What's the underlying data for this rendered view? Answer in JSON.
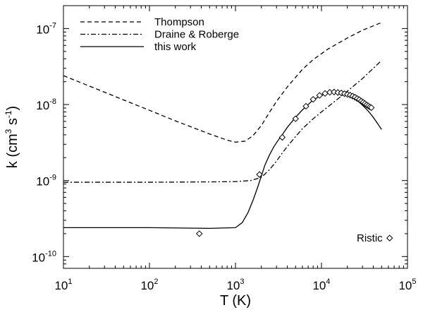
{
  "chart_data": {
    "type": "line",
    "x_scale": "log",
    "y_scale": "log",
    "xlim": [
      10,
      100000
    ],
    "ylim": [
      7e-11,
      2e-07
    ],
    "xlabel": "T (K)",
    "ylabel": {
      "base": "k (cm",
      "sup1": "3",
      "mid": " s",
      "sup2": "-1",
      "end": ")"
    },
    "x_ticks": [
      {
        "value": 10,
        "base": "10",
        "exp": "1"
      },
      {
        "value": 100,
        "base": "10",
        "exp": "2"
      },
      {
        "value": 1000,
        "base": "10",
        "exp": "3"
      },
      {
        "value": 10000,
        "base": "10",
        "exp": "4"
      },
      {
        "value": 100000,
        "base": "10",
        "exp": "5"
      }
    ],
    "y_ticks": [
      {
        "value": 1e-10,
        "base": "10",
        "exp": "-10"
      },
      {
        "value": 1e-09,
        "base": "10",
        "exp": "-9"
      },
      {
        "value": 1e-08,
        "base": "10",
        "exp": "-8"
      },
      {
        "value": 1e-07,
        "base": "10",
        "exp": "-7"
      }
    ],
    "series": [
      {
        "name": "Thompson",
        "style": "dashed",
        "x": [
          10,
          20,
          50,
          100,
          200,
          500,
          800,
          1000,
          1300,
          1600,
          2000,
          2500,
          3000,
          4000,
          6000,
          8000,
          12000,
          20000,
          30000,
          50000
        ],
        "y": [
          2.4e-08,
          1.75e-08,
          1.15e-08,
          8.4e-09,
          6.1e-09,
          4.1e-09,
          3.4e-09,
          3.2e-09,
          3.3e-09,
          3.9e-09,
          5.3e-09,
          8e-09,
          1.1e-08,
          1.7e-08,
          2.9e-08,
          3.9e-08,
          5.4e-08,
          7.5e-08,
          9.5e-08,
          1.2e-07
        ]
      },
      {
        "name": "Draine & Roberge",
        "style": "dashdot",
        "x": [
          10,
          100,
          500,
          1000,
          1500,
          2000,
          2500,
          3000,
          3500,
          4000,
          5000,
          6000,
          8000,
          10000,
          15000,
          20000,
          30000,
          50000
        ],
        "y": [
          9.5e-10,
          9.5e-10,
          9.6e-10,
          9.7e-10,
          1e-09,
          1.1e-09,
          1.4e-09,
          1.8e-09,
          2.3e-09,
          2.8e-09,
          3.8e-09,
          4.8e-09,
          6.5e-09,
          8e-09,
          1.15e-08,
          1.5e-08,
          2.2e-08,
          3.8e-08
        ]
      },
      {
        "name": "this work",
        "style": "solid",
        "x": [
          10,
          100,
          500,
          1000,
          1200,
          1400,
          1600,
          1800,
          2000,
          2200,
          2500,
          2800,
          3200,
          3600,
          4000,
          5000,
          6000,
          7000,
          8000,
          10000,
          12000,
          14000,
          16000,
          20000,
          25000,
          30000,
          35000,
          40000,
          45000,
          50000
        ],
        "y": [
          2.4e-10,
          2.4e-10,
          2.35e-10,
          2.4e-10,
          2.8e-10,
          3.8e-10,
          5.5e-10,
          8e-10,
          1.15e-09,
          1.6e-09,
          2.2e-09,
          2.8e-09,
          3.5e-09,
          4.2e-09,
          5e-09,
          6.8e-09,
          8.5e-09,
          1e-08,
          1.15e-08,
          1.33e-08,
          1.42e-08,
          1.45e-08,
          1.43e-08,
          1.33e-08,
          1.18e-08,
          9.8e-09,
          8.2e-09,
          6.8e-09,
          5.6e-09,
          4.7e-09
        ]
      },
      {
        "name": "Ristic",
        "style": "markers",
        "x": [
          380,
          1900,
          3500,
          5000,
          6600,
          8000,
          9500,
          11000,
          12500,
          14000,
          15500,
          17000,
          18500,
          20000,
          21500,
          23000,
          24500,
          26000,
          27500,
          29000,
          30500,
          32000,
          33500,
          35000,
          36500,
          38000
        ],
        "y": [
          2e-10,
          1.2e-09,
          3.7e-09,
          6.5e-09,
          9.5e-09,
          1.17e-08,
          1.32e-08,
          1.4e-08,
          1.45e-08,
          1.46e-08,
          1.44e-08,
          1.42e-08,
          1.39e-08,
          1.36e-08,
          1.33e-08,
          1.29e-08,
          1.25e-08,
          1.2e-08,
          1.16e-08,
          1.11e-08,
          1.07e-08,
          1.03e-08,
          9.9e-09,
          9.6e-09,
          9.3e-09,
          9.1e-09
        ]
      }
    ],
    "legend": {
      "position": "top-left",
      "entries": [
        "Thompson",
        "Draine & Roberge",
        "this work"
      ]
    },
    "annotations": [
      {
        "text": "Ristic",
        "marker_x": 62000,
        "marker_y": 1.75e-10
      }
    ]
  }
}
